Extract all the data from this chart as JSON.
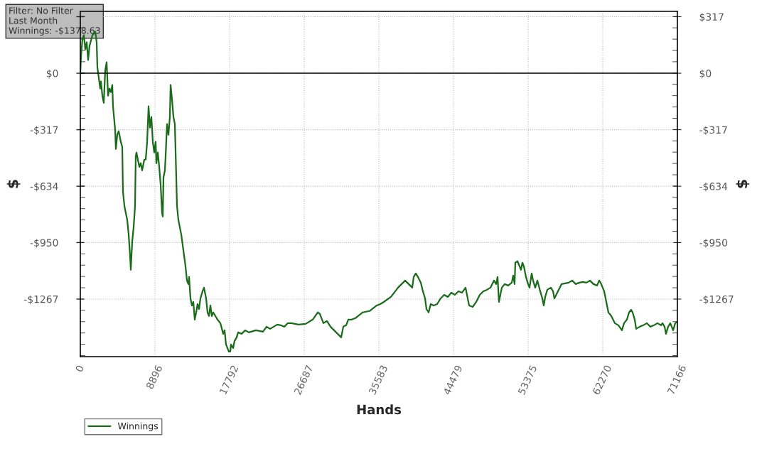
{
  "chart_data": {
    "type": "line",
    "xlabel": "Hands",
    "ylabel": "$",
    "y2label": "$",
    "annotations": [
      "Filter: No Filter\nLast Month\nWinnings: -$1378.63"
    ],
    "xlim": [
      0,
      71166
    ],
    "xticks": [
      0,
      8896,
      17792,
      26687,
      35583,
      44479,
      53375,
      62270,
      71166
    ],
    "ylim": [
      -1590,
      347
    ],
    "yticks": [
      {
        "value": 317,
        "label": null
      },
      {
        "value": 0,
        "label": "$0"
      },
      {
        "value": -317,
        "label": "-$317"
      },
      {
        "value": -634,
        "label": "-$634"
      },
      {
        "value": -950,
        "label": "-$950"
      },
      {
        "value": -1267,
        "label": "-$1267"
      }
    ],
    "y2lim": [
      -1590,
      347
    ],
    "y2ticks": [
      {
        "value": 317,
        "label": "$317"
      },
      {
        "value": 0,
        "label": "$0"
      },
      {
        "value": -317,
        "label": "-$317"
      },
      {
        "value": -634,
        "label": "-$634"
      },
      {
        "value": -950,
        "label": "-$950"
      },
      {
        "value": -1267,
        "label": "-$1267"
      }
    ],
    "ref_lines": [
      {
        "axis": "y",
        "value": 0,
        "color": "#000000"
      }
    ],
    "grid": true,
    "legend": "bottom left",
    "marker": "none",
    "line_style": "solid",
    "series": [
      {
        "name": "Winnings",
        "color": "#1a6b1a",
        "x": [
          0,
          85,
          254,
          424,
          593,
          762,
          932,
          1101,
          1440,
          1779,
          1949,
          2033,
          2203,
          2372,
          2457,
          2626,
          2796,
          2965,
          3135,
          3219,
          3304,
          3474,
          3643,
          3812,
          3897,
          4151,
          4236,
          4405,
          4575,
          4829,
          4998,
          5083,
          5253,
          5422,
          5592,
          5761,
          5930,
          6015,
          6185,
          6354,
          6523,
          6608,
          6693,
          6862,
          7032,
          7201,
          7371,
          7625,
          7794,
          7964,
          8133,
          8303,
          8472,
          8641,
          8811,
          8980,
          9065,
          9234,
          9404,
          9573,
          9743,
          9828,
          9912,
          10082,
          10166,
          10336,
          10505,
          10675,
          10759,
          10929,
          11098,
          11268,
          11437,
          11522,
          11691,
          11861,
          12030,
          12200,
          12369,
          12539,
          12708,
          12877,
          12962,
          13131,
          13301,
          13470,
          13640,
          13809,
          13979,
          14148,
          14317,
          14572,
          14741,
          14995,
          15165,
          15334,
          15504,
          15673,
          15843,
          16097,
          16351,
          16690,
          17029,
          17198,
          17368,
          17537,
          17706,
          17876,
          17961,
          18215,
          18384,
          18638,
          18808,
          19231,
          19655,
          20079,
          20926,
          21773,
          22197,
          22620,
          23044,
          23467,
          23891,
          24315,
          24738,
          25162,
          26009,
          26856,
          27703,
          28296,
          28550,
          28974,
          29398,
          29821,
          30245,
          30669,
          31092,
          31346,
          31685,
          31939,
          32363,
          32787,
          33634,
          34481,
          35328,
          35752,
          36175,
          37023,
          37870,
          38293,
          38717,
          39141,
          39564,
          39734,
          39988,
          40242,
          40581,
          40835,
          41089,
          41259,
          41513,
          41767,
          42106,
          42529,
          42953,
          43377,
          43800,
          44224,
          44647,
          45071,
          45495,
          45918,
          46342,
          46766,
          47189,
          47613,
          48036,
          48460,
          48884,
          49307,
          49561,
          49731,
          49900,
          50239,
          50578,
          51001,
          51425,
          51594,
          51764,
          51849,
          52103,
          52357,
          52526,
          52696,
          52865,
          53119,
          53374,
          53543,
          53797,
          53967,
          54221,
          54475,
          54814,
          55068,
          55237,
          55407,
          55661,
          56085,
          56339,
          56508,
          56932,
          57355,
          58203,
          58626,
          59050,
          59474,
          59897,
          60321,
          60744,
          61168,
          61591,
          61846,
          62015,
          62439,
          62693,
          62947,
          63286,
          63709,
          64133,
          64556,
          64811,
          65150,
          65404,
          65658,
          65827,
          66082,
          66251,
          66675,
          67098,
          67522,
          67946,
          68369,
          68793,
          69216,
          69386,
          69640,
          69809,
          70064,
          70318,
          70657,
          70911,
          71166
        ],
        "values": [
          2,
          94,
          194,
          213,
          134,
          174,
          74,
          154,
          213,
          233,
          174,
          34,
          -26,
          -86,
          -46,
          -126,
          -166,
          14,
          62,
          -26,
          -126,
          -86,
          -106,
          -66,
          -186,
          -317,
          -425,
          -345,
          -325,
          -385,
          -413,
          -664,
          -744,
          -784,
          -824,
          -904,
          -1023,
          -1103,
          -944,
          -864,
          -744,
          -465,
          -445,
          -485,
          -525,
          -505,
          -545,
          -485,
          -485,
          -385,
          -186,
          -305,
          -245,
          -385,
          -445,
          -385,
          -505,
          -445,
          -525,
          -625,
          -784,
          -804,
          -585,
          -545,
          -465,
          -285,
          -345,
          -245,
          -66,
          -146,
          -245,
          -285,
          -585,
          -744,
          -824,
          -864,
          -904,
          -964,
          -1023,
          -1083,
          -1163,
          -1183,
          -1143,
          -1263,
          -1303,
          -1283,
          -1382,
          -1342,
          -1295,
          -1323,
          -1263,
          -1223,
          -1203,
          -1263,
          -1342,
          -1362,
          -1303,
          -1362,
          -1342,
          -1362,
          -1382,
          -1402,
          -1462,
          -1442,
          -1522,
          -1542,
          -1562,
          -1562,
          -1522,
          -1542,
          -1502,
          -1482,
          -1454,
          -1462,
          -1442,
          -1454,
          -1442,
          -1450,
          -1422,
          -1434,
          -1422,
          -1410,
          -1414,
          -1422,
          -1402,
          -1402,
          -1410,
          -1406,
          -1382,
          -1342,
          -1350,
          -1402,
          -1390,
          -1422,
          -1442,
          -1462,
          -1482,
          -1422,
          -1414,
          -1382,
          -1382,
          -1374,
          -1342,
          -1334,
          -1303,
          -1295,
          -1283,
          -1255,
          -1203,
          -1183,
          -1163,
          -1183,
          -1203,
          -1143,
          -1123,
          -1143,
          -1175,
          -1223,
          -1263,
          -1323,
          -1342,
          -1295,
          -1303,
          -1295,
          -1263,
          -1243,
          -1255,
          -1231,
          -1243,
          -1223,
          -1231,
          -1203,
          -1303,
          -1311,
          -1283,
          -1243,
          -1223,
          -1215,
          -1203,
          -1163,
          -1183,
          -1143,
          -1283,
          -1203,
          -1183,
          -1191,
          -1175,
          -1135,
          -1183,
          -1063,
          -1055,
          -1083,
          -1103,
          -1063,
          -1083,
          -1143,
          -1183,
          -1203,
          -1123,
          -1163,
          -1203,
          -1163,
          -1223,
          -1263,
          -1303,
          -1255,
          -1215,
          -1203,
          -1223,
          -1263,
          -1223,
          -1183,
          -1175,
          -1163,
          -1183,
          -1175,
          -1171,
          -1175,
          -1163,
          -1183,
          -1191,
          -1163,
          -1175,
          -1223,
          -1283,
          -1342,
          -1362,
          -1402,
          -1414,
          -1442,
          -1402,
          -1382,
          -1342,
          -1327,
          -1342,
          -1382,
          -1434,
          -1422,
          -1414,
          -1402,
          -1422,
          -1414,
          -1402,
          -1414,
          -1402,
          -1422,
          -1462,
          -1422,
          -1402,
          -1442,
          -1402,
          -1394
        ]
      }
    ]
  }
}
